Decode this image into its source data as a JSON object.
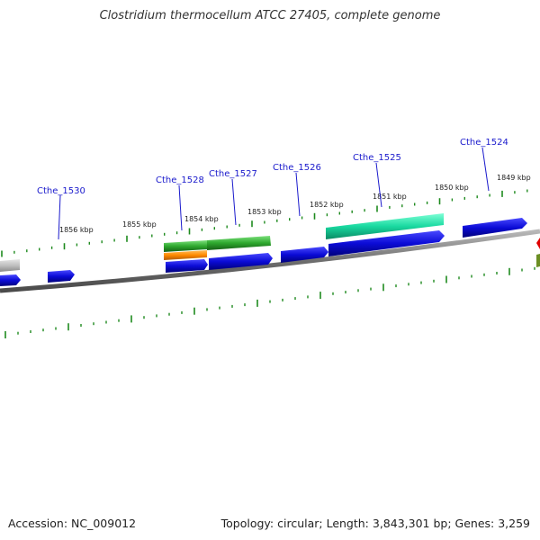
{
  "title": "Clostridium thermocellum ATCC 27405, complete genome",
  "footer": {
    "accession": "Accession: NC_009012",
    "topology": "Topology: circular; Length: 3,843,301 bp; Genes: 3,259"
  },
  "gene_labels": [
    "Cthe_1530",
    "Cthe_1528",
    "Cthe_1527",
    "Cthe_1526",
    "Cthe_1525",
    "Cthe_1524"
  ],
  "kbp_labels": [
    "1856 kbp",
    "1855 kbp",
    "1854 kbp",
    "1853 kbp",
    "1852 kbp",
    "1851 kbp",
    "1850 kbp",
    "1849 kbp"
  ],
  "colors": {
    "cds": "#0b0bd6",
    "trna_orange": "#ff8a00",
    "green": "#2ea82e",
    "teal": "#19d9a0",
    "gray": "#bfbfbf",
    "red": "#e00000",
    "olive": "#6b8e23",
    "tick": "#1e8a1e",
    "backbone": "#7a7a7a",
    "label": "#1a1acc"
  }
}
